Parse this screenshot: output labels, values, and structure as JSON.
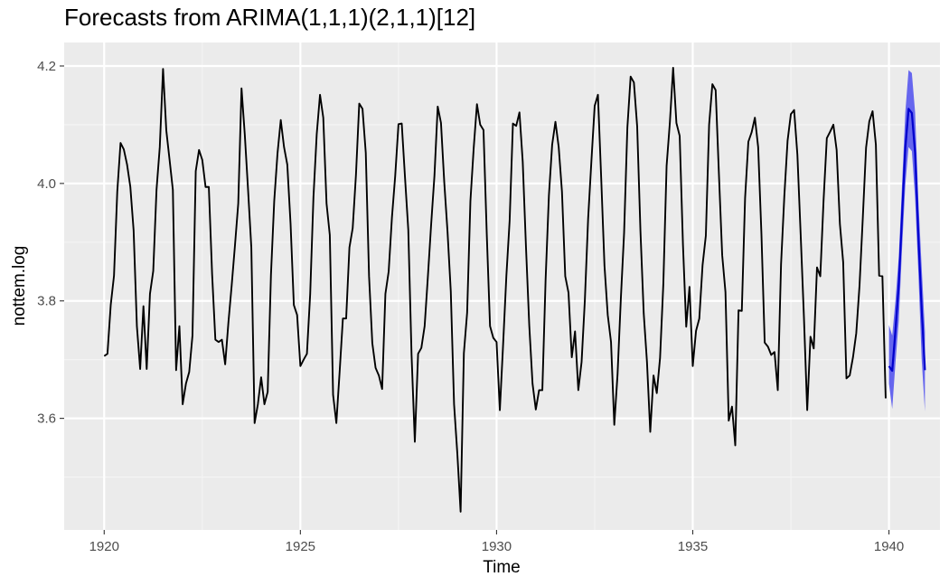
{
  "chart_data": {
    "type": "line",
    "title": "Forecasts from ARIMA(1,1,1)(2,1,1)[12]",
    "xlabel": "Time",
    "ylabel": "nottem.log",
    "xlim": [
      1918.98,
      1941.3
    ],
    "ylim": [
      3.41,
      4.24
    ],
    "x_ticks": [
      1920,
      1925,
      1930,
      1935,
      1940
    ],
    "y_ticks": [
      3.6,
      3.8,
      4.0,
      4.2
    ],
    "x_tick_labels": [
      "1920",
      "1925",
      "1930",
      "1935",
      "1940"
    ],
    "y_tick_labels": [
      "3.6",
      "3.8",
      "4.0",
      "4.2"
    ],
    "grid": true,
    "start": 1920,
    "frequency": 12,
    "series": [
      {
        "color": "#000000",
        "values": [
          3.706,
          3.71,
          3.793,
          3.843,
          3.986,
          4.069,
          4.058,
          4.032,
          3.994,
          3.92,
          3.757,
          3.684,
          3.791,
          3.684,
          3.812,
          3.851,
          3.989,
          4.062,
          4.195,
          4.09,
          4.04,
          3.989,
          3.682,
          3.757,
          3.624,
          3.659,
          3.679,
          3.741,
          4.021,
          4.057,
          4.04,
          3.994,
          3.994,
          3.846,
          3.734,
          3.73,
          3.734,
          3.692,
          3.764,
          3.827,
          3.895,
          3.966,
          4.162,
          4.083,
          3.989,
          3.891,
          3.592,
          3.624,
          3.67,
          3.624,
          3.645,
          3.844,
          3.97,
          4.051,
          4.108,
          4.062,
          4.032,
          3.931,
          3.793,
          3.776,
          3.689,
          3.7,
          3.71,
          3.812,
          3.977,
          4.084,
          4.151,
          4.112,
          3.966,
          3.912,
          3.64,
          3.592,
          3.679,
          3.77,
          3.77,
          3.891,
          3.924,
          4.015,
          4.136,
          4.127,
          4.052,
          3.842,
          3.728,
          3.686,
          3.673,
          3.65,
          3.812,
          3.85,
          3.942,
          4.013,
          4.101,
          4.102,
          4.01,
          3.921,
          3.708,
          3.56,
          3.71,
          3.72,
          3.757,
          3.842,
          3.931,
          4.013,
          4.131,
          4.103,
          4.002,
          3.918,
          3.816,
          3.624,
          3.54,
          3.441,
          3.711,
          3.78,
          3.97,
          4.06,
          4.135,
          4.1,
          4.091,
          3.914,
          3.757,
          3.737,
          3.73,
          3.614,
          3.726,
          3.843,
          3.937,
          4.102,
          4.098,
          4.121,
          4.037,
          3.891,
          3.758,
          3.659,
          3.615,
          3.648,
          3.648,
          3.837,
          3.979,
          4.066,
          4.105,
          4.062,
          3.986,
          3.842,
          3.814,
          3.704,
          3.748,
          3.648,
          3.696,
          3.801,
          3.94,
          4.038,
          4.132,
          4.151,
          4.009,
          3.86,
          3.776,
          3.73,
          3.589,
          3.675,
          3.803,
          3.916,
          4.095,
          4.182,
          4.172,
          4.097,
          3.919,
          3.779,
          3.696,
          3.577,
          3.673,
          3.643,
          3.703,
          3.829,
          4.03,
          4.104,
          4.197,
          4.103,
          4.081,
          3.896,
          3.756,
          3.824,
          3.689,
          3.749,
          3.77,
          3.861,
          3.911,
          4.1,
          4.169,
          4.159,
          4.016,
          3.878,
          3.815,
          3.596,
          3.62,
          3.554,
          3.784,
          3.783,
          3.975,
          4.071,
          4.087,
          4.112,
          4.062,
          3.914,
          3.729,
          3.722,
          3.708,
          3.713,
          3.648,
          3.862,
          3.978,
          4.073,
          4.118,
          4.125,
          4.049,
          3.913,
          3.772,
          3.614,
          3.739,
          3.719,
          3.857,
          3.842,
          3.971,
          4.077,
          4.088,
          4.1,
          4.057,
          3.931,
          3.866,
          3.668,
          3.673,
          3.704,
          3.745,
          3.826,
          3.941,
          4.061,
          4.106,
          4.123,
          4.066,
          3.843,
          3.842,
          3.634
        ]
      }
    ],
    "forecast": {
      "color": "#0000cc",
      "band_color": "#6666ee",
      "start": 1940.0,
      "mean": [
        3.689,
        3.681,
        3.751,
        3.828,
        3.945,
        4.06,
        4.127,
        4.12,
        4.052,
        3.909,
        3.787,
        3.682
      ],
      "lower": [
        3.659,
        3.616,
        3.695,
        3.766,
        3.888,
        3.997,
        4.062,
        4.055,
        3.975,
        3.848,
        3.701,
        3.612
      ],
      "upper": [
        3.759,
        3.741,
        3.801,
        3.875,
        3.997,
        4.121,
        4.193,
        4.188,
        4.121,
        3.971,
        3.858,
        3.748
      ]
    }
  }
}
